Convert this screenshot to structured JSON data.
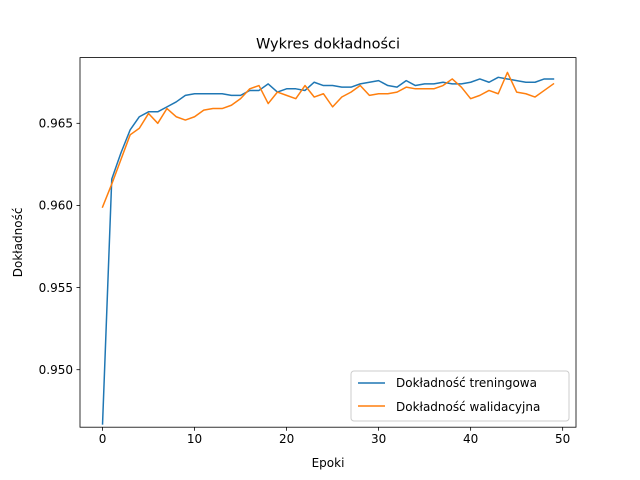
{
  "chart_data": {
    "type": "line",
    "title": "Wykres dokładności",
    "xlabel": "Epoki",
    "ylabel": "Dokładność",
    "xlim": [
      -2.45,
      51.45
    ],
    "ylim": [
      0.9465,
      0.969
    ],
    "xticks": [
      0,
      10,
      20,
      30,
      40,
      50
    ],
    "yticks": [
      0.95,
      0.955,
      0.96,
      0.965
    ],
    "xtick_labels": [
      "0",
      "10",
      "20",
      "30",
      "40",
      "50"
    ],
    "ytick_labels": [
      "0.950",
      "0.955",
      "0.960",
      "0.965"
    ],
    "grid": false,
    "legend_position": "lower-right",
    "x": [
      0,
      1,
      2,
      3,
      4,
      5,
      6,
      7,
      8,
      9,
      10,
      11,
      12,
      13,
      14,
      15,
      16,
      17,
      18,
      19,
      20,
      21,
      22,
      23,
      24,
      25,
      26,
      27,
      28,
      29,
      30,
      31,
      32,
      33,
      34,
      35,
      36,
      37,
      38,
      39,
      40,
      41,
      42,
      43,
      44,
      45,
      46,
      47,
      48,
      49
    ],
    "series": [
      {
        "name": "Dokładność treningowa",
        "color": "#1f77b4",
        "values": [
          0.9467,
          0.9616,
          0.9632,
          0.9646,
          0.9654,
          0.9657,
          0.9657,
          0.966,
          0.9663,
          0.9667,
          0.9668,
          0.9668,
          0.9668,
          0.9668,
          0.9667,
          0.9667,
          0.967,
          0.967,
          0.9674,
          0.9669,
          0.9671,
          0.9671,
          0.967,
          0.9675,
          0.9673,
          0.9673,
          0.9672,
          0.9672,
          0.9674,
          0.9675,
          0.9676,
          0.9673,
          0.9672,
          0.9676,
          0.9673,
          0.9674,
          0.9674,
          0.9675,
          0.9674,
          0.9674,
          0.9675,
          0.9677,
          0.9675,
          0.9678,
          0.9677,
          0.9676,
          0.9675,
          0.9675,
          0.9677,
          0.9677
        ]
      },
      {
        "name": "Dokładność walidacyjna",
        "color": "#ff7f0e",
        "values": [
          0.9599,
          0.9613,
          0.9628,
          0.9643,
          0.9647,
          0.9656,
          0.965,
          0.9659,
          0.9654,
          0.9652,
          0.9654,
          0.9658,
          0.9659,
          0.9659,
          0.9661,
          0.9665,
          0.9671,
          0.9673,
          0.9662,
          0.9669,
          0.9667,
          0.9665,
          0.9673,
          0.9666,
          0.9668,
          0.966,
          0.9666,
          0.9669,
          0.9673,
          0.9667,
          0.9668,
          0.9668,
          0.9669,
          0.9672,
          0.9671,
          0.9671,
          0.9671,
          0.9673,
          0.9677,
          0.9672,
          0.9665,
          0.9667,
          0.967,
          0.9668,
          0.9681,
          0.9669,
          0.9668,
          0.9666,
          0.967,
          0.9674
        ]
      }
    ]
  }
}
